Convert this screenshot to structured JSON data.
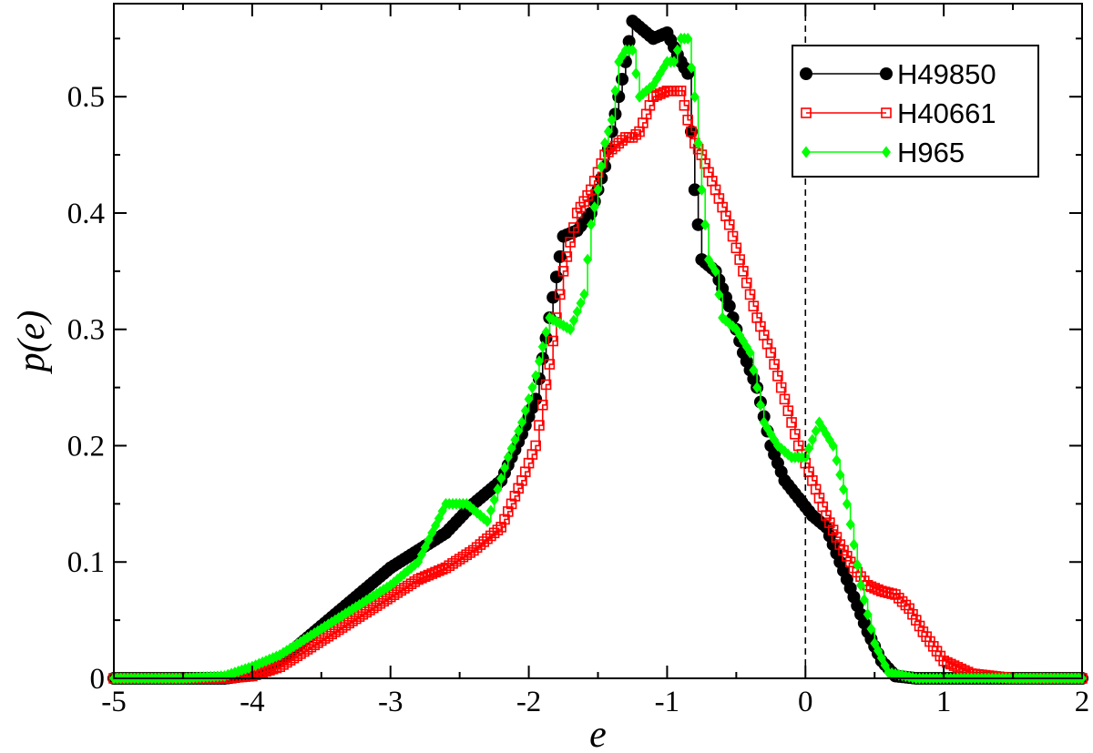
{
  "chart_data": {
    "type": "line",
    "title": "",
    "xlabel": "e",
    "ylabel": "p(e)",
    "xlim": [
      -5,
      2
    ],
    "ylim": [
      0,
      0.58
    ],
    "xticks": [
      -5,
      -4,
      -3,
      -2,
      -1,
      0,
      1,
      2
    ],
    "xtick_labels": [
      "-5",
      "-4",
      "-3",
      "-2",
      "-1",
      "0",
      "1",
      "2"
    ],
    "yticks": [
      0,
      0.1,
      0.2,
      0.3,
      0.4,
      0.5
    ],
    "ytick_labels": [
      "0",
      "0.1",
      "0.2",
      "0.3",
      "0.4",
      "0.5"
    ],
    "vertical_reference_line": 0,
    "grid": false,
    "legend_position": "top-right",
    "series": [
      {
        "name": "H49850",
        "color": "#000000",
        "marker": "filled-circle",
        "step": true,
        "x": [
          -5.0,
          -4.5,
          -4.2,
          -4.0,
          -3.8,
          -3.6,
          -3.4,
          -3.2,
          -3.0,
          -2.8,
          -2.6,
          -2.4,
          -2.2,
          -2.05,
          -1.95,
          -1.85,
          -1.75,
          -1.65,
          -1.55,
          -1.45,
          -1.35,
          -1.3,
          -1.25,
          -1.2,
          -1.1,
          -1.0,
          -0.9,
          -0.85,
          -0.8,
          -0.75,
          -0.65,
          -0.55,
          -0.45,
          -0.35,
          -0.25,
          -0.15,
          -0.05,
          0.05,
          0.15,
          0.25,
          0.35,
          0.45,
          0.55,
          0.65,
          0.8,
          1.0,
          1.5,
          2.0
        ],
        "y": [
          0.0,
          0.0,
          0.0,
          0.003,
          0.015,
          0.035,
          0.055,
          0.075,
          0.095,
          0.11,
          0.125,
          0.15,
          0.17,
          0.21,
          0.24,
          0.31,
          0.38,
          0.385,
          0.4,
          0.44,
          0.5,
          0.53,
          0.565,
          0.56,
          0.55,
          0.555,
          0.53,
          0.52,
          0.42,
          0.36,
          0.35,
          0.32,
          0.28,
          0.25,
          0.2,
          0.17,
          0.155,
          0.14,
          0.13,
          0.1,
          0.07,
          0.04,
          0.015,
          0.002,
          0.0,
          0.0,
          0.0,
          0.0
        ]
      },
      {
        "name": "H40661",
        "color": "#ff0000",
        "marker": "open-square",
        "step": true,
        "x": [
          -5.0,
          -4.5,
          -4.2,
          -4.0,
          -3.8,
          -3.6,
          -3.4,
          -3.2,
          -3.0,
          -2.8,
          -2.6,
          -2.4,
          -2.2,
          -2.05,
          -1.95,
          -1.85,
          -1.75,
          -1.65,
          -1.55,
          -1.45,
          -1.35,
          -1.3,
          -1.25,
          -1.2,
          -1.1,
          -1.0,
          -0.9,
          -0.85,
          -0.8,
          -0.75,
          -0.65,
          -0.55,
          -0.45,
          -0.35,
          -0.25,
          -0.15,
          -0.05,
          0.05,
          0.15,
          0.25,
          0.35,
          0.45,
          0.55,
          0.65,
          0.75,
          0.85,
          1.0,
          1.2,
          1.5,
          2.0
        ],
        "y": [
          0.0,
          0.0,
          0.0,
          0.002,
          0.01,
          0.025,
          0.04,
          0.055,
          0.07,
          0.085,
          0.095,
          0.11,
          0.13,
          0.17,
          0.2,
          0.27,
          0.35,
          0.4,
          0.42,
          0.45,
          0.46,
          0.465,
          0.465,
          0.47,
          0.5,
          0.505,
          0.505,
          0.48,
          0.46,
          0.45,
          0.42,
          0.39,
          0.35,
          0.31,
          0.28,
          0.24,
          0.2,
          0.17,
          0.14,
          0.115,
          0.095,
          0.08,
          0.075,
          0.072,
          0.06,
          0.04,
          0.015,
          0.004,
          0.0,
          0.0
        ]
      },
      {
        "name": "H965",
        "color": "#00ff00",
        "marker": "filled-diamond",
        "step": true,
        "x": [
          -5.0,
          -4.5,
          -4.2,
          -4.0,
          -3.8,
          -3.6,
          -3.4,
          -3.2,
          -3.0,
          -2.8,
          -2.6,
          -2.45,
          -2.3,
          -2.15,
          -2.05,
          -1.95,
          -1.85,
          -1.7,
          -1.6,
          -1.55,
          -1.5,
          -1.45,
          -1.4,
          -1.35,
          -1.3,
          -1.25,
          -1.2,
          -1.1,
          -1.0,
          -0.95,
          -0.9,
          -0.85,
          -0.8,
          -0.75,
          -0.7,
          -0.65,
          -0.6,
          -0.5,
          -0.4,
          -0.3,
          -0.2,
          -0.1,
          0.0,
          0.1,
          0.2,
          0.3,
          0.4,
          0.5,
          0.6,
          0.8,
          1.0,
          1.5,
          2.0
        ],
        "y": [
          0.0,
          0.0,
          0.002,
          0.01,
          0.02,
          0.035,
          0.05,
          0.065,
          0.08,
          0.1,
          0.15,
          0.15,
          0.135,
          0.19,
          0.22,
          0.26,
          0.31,
          0.3,
          0.33,
          0.39,
          0.42,
          0.46,
          0.48,
          0.53,
          0.54,
          0.54,
          0.5,
          0.51,
          0.53,
          0.53,
          0.55,
          0.55,
          0.5,
          0.42,
          0.36,
          0.35,
          0.31,
          0.3,
          0.28,
          0.22,
          0.2,
          0.19,
          0.19,
          0.22,
          0.2,
          0.15,
          0.08,
          0.03,
          0.005,
          0.0,
          0.0,
          0.0,
          0.0
        ]
      }
    ]
  }
}
